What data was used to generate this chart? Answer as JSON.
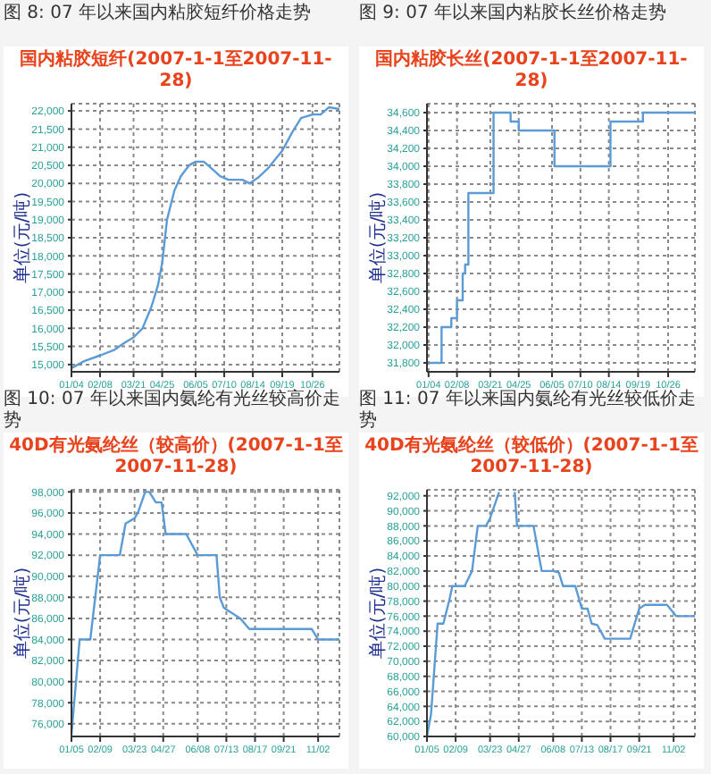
{
  "chart_data": [
    {
      "type": "line",
      "title": "图 8:  07 年以来国内粘胶短纤价格走势",
      "subtitle": "国内粘胶短纤(2007-1-1至2007-11-28)",
      "ylabel": "单位(元/吨)",
      "color": "#5b9bd5",
      "marker": "none",
      "grid": true,
      "x": [
        "--01-04",
        "--01-20",
        "--02-08",
        "--02-25",
        "--03-10",
        "--03-21",
        "--04-01",
        "--04-12",
        "--04-20",
        "--04-25",
        "--05-01",
        "--05-10",
        "--05-18",
        "--05-28",
        "--06-05",
        "--06-15",
        "--06-25",
        "--07-05",
        "--07-15",
        "--08-01",
        "--08-10",
        "--08-20",
        "--09-01",
        "--09-10",
        "--09-19",
        "--10-01",
        "--10-12",
        "--10-26",
        "--11-05",
        "--11-15",
        "--11-28"
      ],
      "values": [
        14900,
        15100,
        15250,
        15400,
        15600,
        15750,
        16000,
        16600,
        17200,
        17800,
        19000,
        19800,
        20200,
        20500,
        20600,
        20600,
        20400,
        20200,
        20100,
        20100,
        20000,
        20150,
        20400,
        20650,
        20900,
        21400,
        21800,
        21900,
        21900,
        22100,
        22050
      ],
      "xlim": [
        "--01-04",
        "--11-28"
      ],
      "xticks": [
        {
          "value": "--01-04",
          "label": "01/04"
        },
        {
          "value": "--02-08",
          "label": "02/08"
        },
        {
          "value": "--03-21",
          "label": "03/21"
        },
        {
          "value": "--04-25",
          "label": "04/25"
        },
        {
          "value": "--06-05",
          "label": "06/05"
        },
        {
          "value": "--07-10",
          "label": "07/10"
        },
        {
          "value": "--08-14",
          "label": "08/14"
        },
        {
          "value": "--09-19",
          "label": "09/19"
        },
        {
          "value": "--10-26",
          "label": "10/26"
        }
      ],
      "ylim": [
        14800,
        22200
      ],
      "yticks": [
        {
          "value": 15000,
          "label": "15,000"
        },
        {
          "value": 15500,
          "label": "15,500"
        },
        {
          "value": 16000,
          "label": "16,000"
        },
        {
          "value": 16500,
          "label": "16,500"
        },
        {
          "value": 17000,
          "label": "17,000"
        },
        {
          "value": 17500,
          "label": "17,500"
        },
        {
          "value": 18000,
          "label": "18,000"
        },
        {
          "value": 18500,
          "label": "18,500"
        },
        {
          "value": 19000,
          "label": "19,000"
        },
        {
          "value": 19500,
          "label": "19,500"
        },
        {
          "value": 20000,
          "label": "20,000"
        },
        {
          "value": 20500,
          "label": "20,500"
        },
        {
          "value": 21000,
          "label": "21,000"
        },
        {
          "value": 21500,
          "label": "21,500"
        },
        {
          "value": 22000,
          "label": "22,000"
        }
      ]
    },
    {
      "type": "step",
      "title": "图 9:  07 年以来国内粘胶长丝价格走势",
      "subtitle": "国内粘胶长丝(2007-1-1至2007-11-28)",
      "ylabel": "单位(元/吨)",
      "color": "#5b9bd5",
      "marker": "none",
      "grid": true,
      "x": [
        "--01-04",
        "--01-20",
        "--02-01",
        "--02-08",
        "--02-15",
        "--02-18",
        "--02-22",
        "--03-25",
        "--04-15",
        "--04-25",
        "--06-08",
        "--08-16",
        "--09-25",
        "--11-28"
      ],
      "values": [
        31800,
        32200,
        32300,
        32500,
        32800,
        32900,
        33700,
        34600,
        34500,
        34400,
        34000,
        34500,
        34600,
        34600
      ],
      "xlim": [
        "--01-02",
        "--11-28"
      ],
      "xticks": [
        {
          "value": "--01-04",
          "label": "01/04"
        },
        {
          "value": "--02-08",
          "label": "02/08"
        },
        {
          "value": "--03-21",
          "label": "03/21"
        },
        {
          "value": "--04-25",
          "label": "04/25"
        },
        {
          "value": "--06-05",
          "label": "06/05"
        },
        {
          "value": "--07-10",
          "label": "07/10"
        },
        {
          "value": "--08-14",
          "label": "08/14"
        },
        {
          "value": "--09-19",
          "label": "09/19"
        },
        {
          "value": "--10-26",
          "label": "10/26"
        }
      ],
      "ylim": [
        31700,
        34700
      ],
      "yticks": [
        {
          "value": 31800,
          "label": "31,800"
        },
        {
          "value": 32000,
          "label": "32,000"
        },
        {
          "value": 32200,
          "label": "32,200"
        },
        {
          "value": 32400,
          "label": "32,400"
        },
        {
          "value": 32600,
          "label": "32,600"
        },
        {
          "value": 32800,
          "label": "32,800"
        },
        {
          "value": 33000,
          "label": "33,000"
        },
        {
          "value": 33200,
          "label": "33,200"
        },
        {
          "value": 33400,
          "label": "33,400"
        },
        {
          "value": 33600,
          "label": "33,600"
        },
        {
          "value": 33800,
          "label": "33,800"
        },
        {
          "value": 34000,
          "label": "34,000"
        },
        {
          "value": 34200,
          "label": "34,200"
        },
        {
          "value": 34400,
          "label": "34,400"
        },
        {
          "value": 34600,
          "label": "34,600"
        }
      ]
    },
    {
      "type": "line",
      "title": "图 10:  07 年以来国内氨纶有光丝较高价走势",
      "subtitle": "40D有光氨纶丝（较高价）(2007-1-1至2007-11-28)",
      "ylabel": "单位(元/吨)",
      "color": "#5b9bd5",
      "marker": "none",
      "grid": true,
      "x": [
        "--01-05",
        "--01-15",
        "--01-28",
        "--02-09",
        "--03-05",
        "--03-12",
        "--03-23",
        "--03-27",
        "--04-05",
        "--04-10",
        "--04-18",
        "--04-25",
        "--04-30",
        "--05-25",
        "--06-08",
        "--07-01",
        "--07-05",
        "--07-10",
        "--07-20",
        "--07-30",
        "--08-10",
        "--10-25",
        "--11-02",
        "--11-28"
      ],
      "values": [
        75000,
        84000,
        84000,
        92000,
        92000,
        95000,
        95500,
        96000,
        98000,
        98000,
        97000,
        97000,
        94000,
        94000,
        92000,
        92000,
        88000,
        87000,
        86500,
        86000,
        85000,
        85000,
        84000,
        84000
      ],
      "xlim": [
        "--01-05",
        "--11-28"
      ],
      "xticks": [
        {
          "value": "--01-05",
          "label": "01/05"
        },
        {
          "value": "--02-09",
          "label": "02/09"
        },
        {
          "value": "--03-23",
          "label": "03/23"
        },
        {
          "value": "--04-27",
          "label": "04/27"
        },
        {
          "value": "--06-08",
          "label": "06/08"
        },
        {
          "value": "--07-13",
          "label": "07/13"
        },
        {
          "value": "--08-17",
          "label": "08/17"
        },
        {
          "value": "--09-21",
          "label": "09/21"
        },
        {
          "value": "--11-02",
          "label": "11/02"
        }
      ],
      "ylim": [
        74800,
        98200
      ],
      "yticks": [
        {
          "value": 76000,
          "label": "76,000"
        },
        {
          "value": 78000,
          "label": "78,000"
        },
        {
          "value": 80000,
          "label": "80,000"
        },
        {
          "value": 82000,
          "label": "82,000"
        },
        {
          "value": 84000,
          "label": "84,000"
        },
        {
          "value": 86000,
          "label": "86,000"
        },
        {
          "value": 88000,
          "label": "88,000"
        },
        {
          "value": 90000,
          "label": "90,000"
        },
        {
          "value": 92000,
          "label": "92,000"
        },
        {
          "value": 94000,
          "label": "94,000"
        },
        {
          "value": 96000,
          "label": "96,000"
        },
        {
          "value": 98000,
          "label": "98,000"
        }
      ]
    },
    {
      "type": "line",
      "title": "图 11:  07 年以来国内氨纶有光丝较低价走势",
      "subtitle": "40D有光氨纶丝（较低价）(2007-1-1至2007-11-28)",
      "ylabel": "单位(元/吨)",
      "color": "#5b9bd5",
      "marker": "none",
      "grid": true,
      "x": [
        "--01-05",
        "--01-10",
        "--01-18",
        "--01-25",
        "--02-01",
        "--02-05",
        "--02-20",
        "--03-01",
        "--03-08",
        "--03-18",
        "--03-23",
        "--04-03",
        "--04-12",
        "--04-22",
        "--04-25",
        "--05-15",
        "--05-25",
        "--06-08",
        "--06-15",
        "--06-20",
        "--07-05",
        "--07-13",
        "--07-20",
        "--07-25",
        "--08-01",
        "--08-10",
        "--09-10",
        "--09-21",
        "--09-28",
        "--10-25",
        "--11-05",
        "--11-28"
      ],
      "values": [
        60000,
        63000,
        75000,
        75000,
        78000,
        80000,
        80000,
        82000,
        88000,
        88000,
        89000,
        92500,
        null,
        92500,
        88000,
        88000,
        82000,
        82000,
        81800,
        80000,
        80000,
        77000,
        77000,
        75000,
        74800,
        73000,
        73000,
        77000,
        77500,
        77500,
        76000,
        76000
      ],
      "xlim": [
        "--01-05",
        "--11-28"
      ],
      "xticks": [
        {
          "value": "--01-05",
          "label": "01/05"
        },
        {
          "value": "--02-09",
          "label": "02/09"
        },
        {
          "value": "--03-23",
          "label": "03/23"
        },
        {
          "value": "--04-27",
          "label": "04/27"
        },
        {
          "value": "--06-08",
          "label": "06/08"
        },
        {
          "value": "--07-13",
          "label": "07/13"
        },
        {
          "value": "--08-17",
          "label": "08/17"
        },
        {
          "value": "--09-21",
          "label": "09/21"
        },
        {
          "value": "--11-02",
          "label": "11/02"
        }
      ],
      "ylim": [
        60000,
        92800
      ],
      "yticks": [
        {
          "value": 60000,
          "label": "60,000"
        },
        {
          "value": 62000,
          "label": "62,000"
        },
        {
          "value": 64000,
          "label": "64,000"
        },
        {
          "value": 66000,
          "label": "66,000"
        },
        {
          "value": 68000,
          "label": "68,000"
        },
        {
          "value": 70000,
          "label": "70,000"
        },
        {
          "value": 72000,
          "label": "72,000"
        },
        {
          "value": 74000,
          "label": "74,000"
        },
        {
          "value": 76000,
          "label": "76,000"
        },
        {
          "value": 78000,
          "label": "78,000"
        },
        {
          "value": 80000,
          "label": "80,000"
        },
        {
          "value": 82000,
          "label": "82,000"
        },
        {
          "value": 84000,
          "label": "84,000"
        },
        {
          "value": 86000,
          "label": "86,000"
        },
        {
          "value": 88000,
          "label": "88,000"
        },
        {
          "value": 90000,
          "label": "90,000"
        },
        {
          "value": 92000,
          "label": "92,000"
        }
      ]
    }
  ]
}
